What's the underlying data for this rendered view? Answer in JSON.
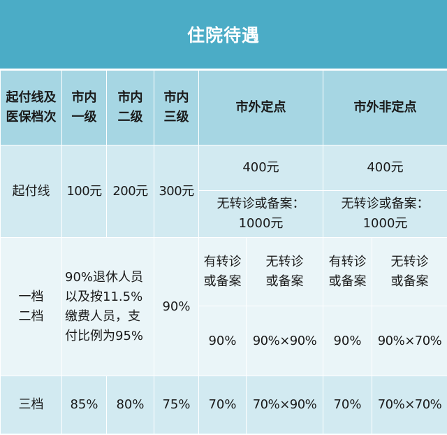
{
  "title": "住院待遇",
  "header": {
    "col1_line1": "起付线及",
    "col1_line2": "医保档次",
    "city1_line1": "市内",
    "city1_line2": "一级",
    "city2_line1": "市内",
    "city2_line2": "二级",
    "city3_line1": "市内",
    "city3_line2": "三级",
    "outside_designated": "市外定点",
    "outside_non_designated": "市外非定点"
  },
  "deductible": {
    "label": "起付线",
    "city1": "100元",
    "city2": "200元",
    "city3": "300元",
    "outside_designated": "400元",
    "outside_non_designated": "400元",
    "no_referral_designated_line1": "无转诊或备案：",
    "no_referral_designated_line2": "1000元",
    "no_referral_non_designated_line1": "无转诊或备案：",
    "no_referral_non_designated_line2": "1000元"
  },
  "tier12": {
    "label_line1": "一档",
    "label_line2": "二档",
    "city12_note_line1": "90%退休人员",
    "city12_note_line2": "以及按11.5%",
    "city12_note_line3": "缴费人员，支",
    "city12_note_line4": "付比例为95%",
    "city3": "90%",
    "with_referral_line1": "有转诊",
    "with_referral_line2": "或备案",
    "without_referral_line1": "无转诊",
    "without_referral_line2": "或备案",
    "designated_with": "90%",
    "designated_without": "90%×90%",
    "non_designated_with": "90%",
    "non_designated_without": "90%×70%"
  },
  "tier3": {
    "label": "三档",
    "city1": "85%",
    "city2": "80%",
    "city3": "75%",
    "designated_with": "70%",
    "designated_without": "70%×90%",
    "non_designated_with": "70%",
    "non_designated_without": "70%×70%"
  },
  "colors": {
    "title_bg": "#4bacc6",
    "header_bg": "#a6d6e3",
    "row_dark": "#d2eaf1",
    "row_light": "#eaf5f8"
  }
}
